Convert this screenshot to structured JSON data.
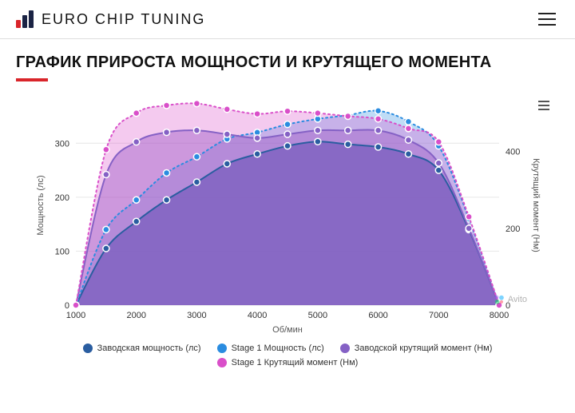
{
  "header": {
    "brand_text": "EURO CHIP TUNING",
    "logo_colors": {
      "bar1": "#d9252a",
      "bar2": "#1a2344",
      "bar3": "#1a2344"
    }
  },
  "page": {
    "title": "ГРАФИК ПРИРОСТА МОЩНОСТИ И КРУТЯЩЕГО МОМЕНТА",
    "underline_color": "#d9252a"
  },
  "chart": {
    "type": "line-area-dual-axis",
    "x_label": "Об/мин",
    "y_left_label": "Мощность (лс)",
    "y_right_label": "Крутящий момент (Нм)",
    "x_categories": [
      1000,
      1500,
      2000,
      2500,
      3000,
      3500,
      4000,
      4500,
      5000,
      5500,
      6000,
      6500,
      7000,
      7500,
      8000
    ],
    "x_ticks": [
      1000,
      2000,
      3000,
      4000,
      5000,
      6000,
      7000,
      8000
    ],
    "y_left_ticks": [
      0,
      100,
      200,
      300
    ],
    "y_left_range": [
      0,
      370
    ],
    "y_right_ticks": [
      0,
      200,
      400
    ],
    "y_right_range": [
      0,
      520
    ],
    "background_color": "#ffffff",
    "grid_color": "#e6e6e6",
    "series": [
      {
        "name": "Заводская мощность (лс)",
        "axis": "left",
        "style": "solid",
        "color": "#2a5da0",
        "fill": "#2a5da0",
        "fill_opacity": 0.78,
        "marker": "circle",
        "marker_stroke": "#ffffff",
        "data": [
          0,
          105,
          155,
          195,
          228,
          262,
          280,
          295,
          303,
          298,
          293,
          280,
          250,
          140,
          0
        ]
      },
      {
        "name": "Stage 1 Мощность (лс)",
        "axis": "left",
        "style": "dotted",
        "color": "#2a8ce0",
        "fill": "#2a8ce0",
        "fill_opacity": 0.3,
        "marker": "circle",
        "marker_stroke": "#ffffff",
        "data": [
          0,
          140,
          195,
          245,
          275,
          308,
          320,
          335,
          345,
          352,
          360,
          340,
          295,
          160,
          0
        ]
      },
      {
        "name": "Заводской крутящий момент (Нм)",
        "axis": "right",
        "style": "solid",
        "color": "#8561c5",
        "fill": "#8561c5",
        "fill_opacity": 0.45,
        "marker": "circle",
        "marker_stroke": "#ffffff",
        "data": [
          0,
          340,
          425,
          450,
          455,
          445,
          435,
          445,
          455,
          455,
          455,
          430,
          370,
          200,
          0
        ]
      },
      {
        "name": "Stage 1 Крутящий момент (Нм)",
        "axis": "right",
        "style": "dotted",
        "color": "#d94fc9",
        "fill": "#d94fc9",
        "fill_opacity": 0.3,
        "marker": "circle",
        "marker_stroke": "#ffffff",
        "data": [
          0,
          405,
          500,
          520,
          525,
          510,
          498,
          505,
          500,
          492,
          485,
          460,
          425,
          230,
          0
        ]
      }
    ],
    "legend_items": [
      {
        "label": "Заводская мощность (лс)",
        "color": "#2a5da0"
      },
      {
        "label": "Stage 1 Мощность (лс)",
        "color": "#2a8ce0"
      },
      {
        "label": "Заводской крутящий момент (Нм)",
        "color": "#8561c5"
      },
      {
        "label": "Stage 1 Крутящий момент (Нм)",
        "color": "#d94fc9"
      }
    ]
  },
  "watermark": {
    "text": "Avito"
  }
}
